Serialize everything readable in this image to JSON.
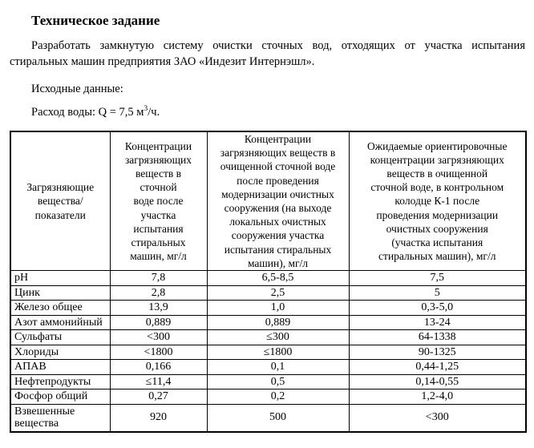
{
  "document": {
    "title": "Техническое задание",
    "task_paragraph": "Разработать замкнутую систему очистки сточных вод, отходящих от участка испытания стиральных машин предприятия ЗАО «Индезит Интернэшл».",
    "initial_data_label": "Исходные данные:",
    "flow_rate": {
      "prefix": "Расход воды: Q = 7,5 м",
      "superscript": "3",
      "suffix": "/ч."
    },
    "colors": {
      "text": "#000000",
      "background": "#ffffff",
      "table_border": "#000000"
    }
  },
  "table": {
    "headers": [
      "Загрязняющие\nвещества/\nпоказатели",
      "Концентрации\nзагрязняющих\nвеществ в\nсточной\nводе после\nучастка\nиспытания\nстиральных\nмашин, мг/л",
      "Концентрации\nзагрязняющих веществ в\nочищенной сточной воде\nпосле проведения\nмодернизации очистных\nсооружения (на выходе\nлокальных очистных\nсооружения участка\nиспытания стиральных\nмашин), мг/л",
      "Ожидаемые ориентировочные\nконцентрации загрязняющих\nвеществ в очищенной\nсточной воде, в контрольном\nколодце К-1 после\nпроведения модернизации\nочистных сооружения\n(участка испытания\nстиральных машин), мг/л"
    ],
    "rows": [
      {
        "substance": "pH",
        "c2": "7,8",
        "c3": "6,5-8,5",
        "c4": "7,5"
      },
      {
        "substance": "Цинк",
        "c2": "2,8",
        "c3": "2,5",
        "c4": "5"
      },
      {
        "substance": "Железо общее",
        "c2": "13,9",
        "c3": "1,0",
        "c4": "0,3-5,0"
      },
      {
        "substance": "Азот аммонийный",
        "c2": "0,889",
        "c3": "0,889",
        "c4": "13-24"
      },
      {
        "substance": "Сульфаты",
        "c2": "<300",
        "c3": "≤300",
        "c4": "64-1338"
      },
      {
        "substance": "Хлориды",
        "c2": "<1800",
        "c3": "≤1800",
        "c4": "90-1325"
      },
      {
        "substance": "АПАВ",
        "c2": "0,166",
        "c3": "0,1",
        "c4": "0,44-1,25"
      },
      {
        "substance": "Нефтепродукты",
        "c2": "≤11,4",
        "c3": "0,5",
        "c4": "0,14-0,55"
      },
      {
        "substance": "Фосфор общий",
        "c2": "0,27",
        "c3": "0,2",
        "c4": "1,2-4,0"
      },
      {
        "substance": "Взвешенные вещества",
        "c2": "920",
        "c3": "500",
        "c4": "<300"
      }
    ]
  }
}
